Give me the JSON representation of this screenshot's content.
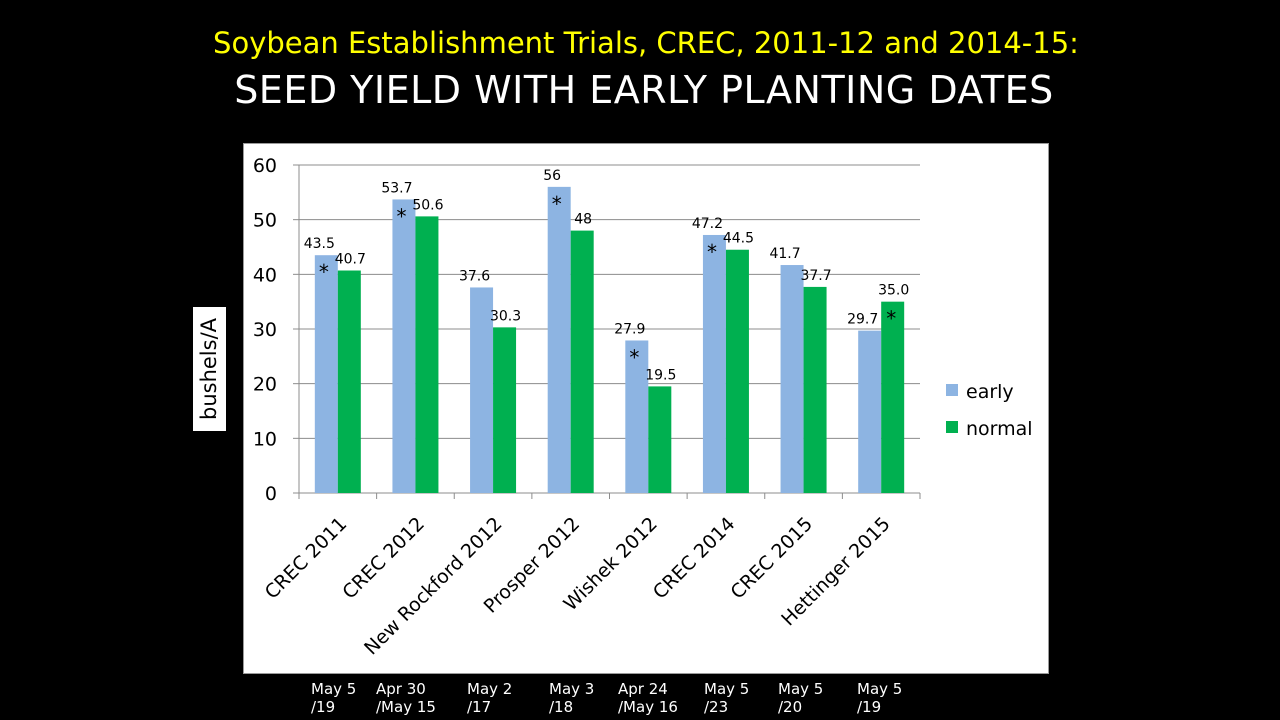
{
  "title_line1": "Soybean Establishment Trials, CREC, 2011-12 and 2014-15:",
  "title_line2": "SEED YIELD WITH EARLY PLANTING DATES",
  "colors": {
    "early": "#8DB4E2",
    "normal": "#00B050",
    "title": "#FFFF00"
  },
  "chart_data": {
    "type": "bar",
    "title": "",
    "xlabel": "",
    "ylabel": "bushels/A",
    "ylim": [
      0,
      60
    ],
    "yticks": [
      0,
      10,
      20,
      30,
      40,
      50,
      60
    ],
    "categories": [
      "CREC 2011",
      "CREC 2012",
      "New Rockford 2012",
      "Prosper 2012",
      "Wishek 2012",
      "CREC 2014",
      "CREC 2015",
      "Hettinger 2015"
    ],
    "series": [
      {
        "name": "early",
        "color": "#8DB4E2",
        "values": [
          43.5,
          53.7,
          37.6,
          56,
          27.9,
          47.2,
          41.7,
          29.7
        ],
        "labels": [
          "43.5",
          "53.7",
          "37.6",
          "56",
          "27.9",
          "47.2",
          "41.7",
          "29.7"
        ]
      },
      {
        "name": "normal",
        "color": "#00B050",
        "values": [
          40.7,
          50.6,
          30.3,
          48,
          19.5,
          44.5,
          37.7,
          35.0
        ],
        "labels": [
          "40.7",
          "50.6",
          "30.3",
          "48",
          "19.5",
          "44.5",
          "37.7",
          "35.0"
        ]
      }
    ],
    "significance_marker": "*",
    "significant": [
      {
        "category": 0,
        "series": 0
      },
      {
        "category": 1,
        "series": 0
      },
      {
        "category": 3,
        "series": 0
      },
      {
        "category": 4,
        "series": 0
      },
      {
        "category": 5,
        "series": 0
      },
      {
        "category": 7,
        "series": 1
      }
    ],
    "legend": [
      "early",
      "normal"
    ],
    "legend_position": "right",
    "grid": true
  },
  "planting_dates": [
    [
      "May 5",
      "/19"
    ],
    [
      "Apr 30",
      "/May 15"
    ],
    [
      "May 2",
      "/17"
    ],
    [
      "May 3",
      "/18"
    ],
    [
      "Apr 24",
      "/May 16"
    ],
    [
      "May 5",
      "/23"
    ],
    [
      "May 5",
      "/20"
    ],
    [
      "May 5",
      "/19"
    ]
  ]
}
